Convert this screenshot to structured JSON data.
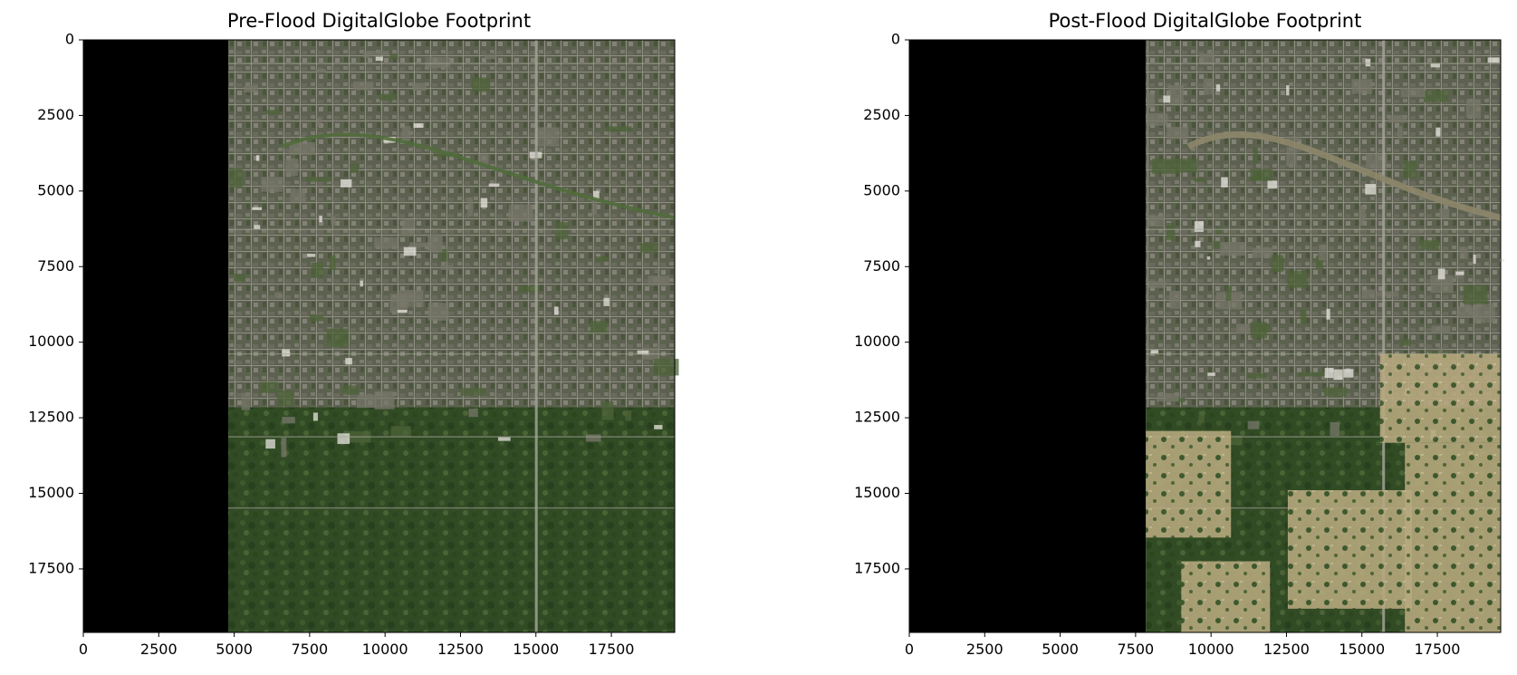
{
  "panels": [
    {
      "title": "Pre-Flood DigitalGlobe Footprint",
      "image_description_type": "satellite imagery",
      "image_extent": {
        "x": [
          0,
          19600
        ],
        "y": [
          19600,
          0
        ]
      },
      "nodata_fraction_left": 0.245,
      "x_ticks": [
        "0",
        "2500",
        "5000",
        "7500",
        "10000",
        "12500",
        "15000",
        "17500"
      ],
      "y_ticks": [
        "0",
        "2500",
        "5000",
        "7500",
        "10000",
        "12500",
        "15000",
        "17500"
      ],
      "x_tick_values": [
        0,
        2500,
        5000,
        7500,
        10000,
        12500,
        15000,
        17500
      ],
      "y_tick_values": [
        0,
        2500,
        5000,
        7500,
        10000,
        12500,
        15000,
        17500
      ],
      "tone": "pre"
    },
    {
      "title": "Post-Flood DigitalGlobe Footprint",
      "image_description_type": "satellite imagery",
      "image_extent": {
        "x": [
          0,
          19600
        ],
        "y": [
          19600,
          0
        ]
      },
      "nodata_fraction_left": 0.4,
      "x_ticks": [
        "0",
        "2500",
        "5000",
        "7500",
        "10000",
        "12500",
        "15000",
        "17500"
      ],
      "y_ticks": [
        "0",
        "2500",
        "5000",
        "7500",
        "10000",
        "12500",
        "15000",
        "17500"
      ],
      "x_tick_values": [
        0,
        2500,
        5000,
        7500,
        10000,
        12500,
        15000,
        17500
      ],
      "y_tick_values": [
        0,
        2500,
        5000,
        7500,
        10000,
        12500,
        15000,
        17500
      ],
      "tone": "post"
    }
  ],
  "colors": {
    "nodata": "#000000",
    "vegetation_dark": "#2f4522",
    "vegetation_mid": "#4a5a35",
    "urban_gray": "#6d6d62",
    "road_light": "#a8a79c",
    "flood_tan": "#b3a67d",
    "roof_white": "#e8e6df"
  }
}
